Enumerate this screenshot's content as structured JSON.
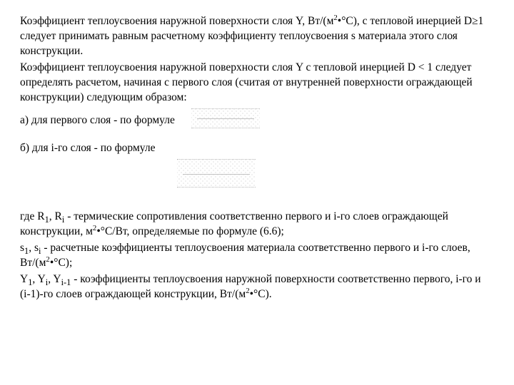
{
  "doc": {
    "p1_a": "Коэффициент теплоусвоения наружной поверхности слоя Y, Вт/(м",
    "p1_sup1": "2",
    "p1_b": "•°С), с тепловой инерцией D≥1 следует принимать равным расчетному коэффициенту теплоусвоения s материала этого слоя конструкции.",
    "p2_a": "Коэффициент теплоусвоения наружной поверхности слоя Y с тепловой инерцией D < 1 следует определять расчетом, начиная с первого слоя (считая от внутренней поверхности ограждающей конструкции) следующим образом:",
    "p3": "а) для первого слоя - по формуле",
    "p4": " б) для i-го слоя - по формуле",
    "p5_a": "где R",
    "p5_sub1": "1",
    "p5_b": ", R",
    "p5_sub2": "i",
    "p5_c": " - термические сопротивления соответственно первого и i-го слоев ограждающей конструкции, м",
    "p5_sup1": "2",
    "p5_d": "•°С/Вт, определяемые по формуле (6.6);",
    "p6_a": "s",
    "p6_sub1": "1",
    "p6_b": ", s",
    "p6_sub2": "i",
    "p6_c": " - расчетные коэффициенты теплоусвоения материала соответственно первого и i-го слоев, Вт/(м",
    "p6_sup1": "2",
    "p6_d": "•°С);",
    "p7_a": "Y",
    "p7_sub1": "1",
    "p7_b": ", Y",
    "p7_sub2": "i",
    "p7_c": ", Y",
    "p7_sub3": "i-1",
    "p7_d": " - коэффициенты теплоусвоения наружной поверхности соответственно первого, i-го и (i-1)-го слоев ограждающей конструкции, Вт/(м",
    "p7_sup1": "2",
    "p7_e": "•°С)."
  },
  "style": {
    "font_family": "Times New Roman",
    "font_size_pt": 12,
    "text_color": "#000000",
    "background_color": "#ffffff",
    "formula_placeholder_color": "#888888"
  }
}
